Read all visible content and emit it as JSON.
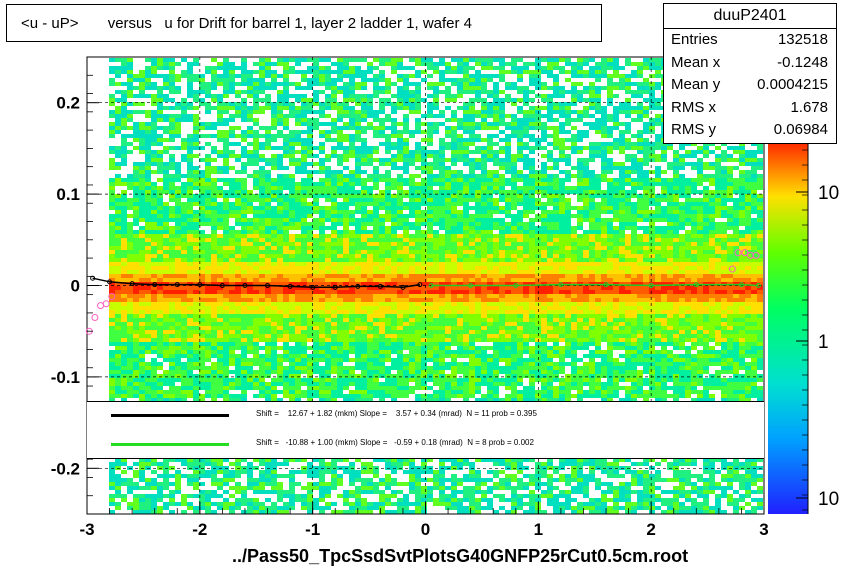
{
  "title": "<u - uP>       versus   u for Drift for barrel 1, layer 2 ladder 1, wafer 4",
  "x_axis_title": "../Pass50_TpcSsdSvtPlotsG40GNFP25rCut0.5cm.root",
  "stats": {
    "name": "duuP2401",
    "rows": [
      {
        "label": "Entries",
        "value": "132518"
      },
      {
        "label": "Mean x",
        "value": "-0.1248"
      },
      {
        "label": "Mean y",
        "value": "0.0004215"
      },
      {
        "label": "RMS x",
        "value": "1.678"
      },
      {
        "label": "RMS y",
        "value": "0.06984"
      }
    ]
  },
  "fit_legend": [
    {
      "color": "#000000",
      "text": "Shift =    12.67 + 1.82 (mkm) Slope =    3.57 + 0.34 (mrad)  N = 11 prob = 0.395"
    },
    {
      "color": "#22dd22",
      "text": "Shift =   -10.88 + 1.00 (mkm) Slope =   -0.59 + 0.18 (mrad)  N = 8 prob = 0.002"
    }
  ],
  "colors": {
    "heat_low": "#00e0c0",
    "heat_mid": "#40ff00",
    "heat_high": "#ffd000",
    "core": "#ff2000",
    "profile_black": "#000000",
    "profile_green": "#22cc22",
    "points": "#ff60c0"
  },
  "chart_data": {
    "type": "heatmap",
    "title": "<u - uP>       versus   u for Drift for barrel 1, layer 2 ladder 1, wafer 4",
    "xlabel": "../Pass50_TpcSsdSvtPlotsG40GNFP25rCut0.5cm.root",
    "ylabel": "",
    "xlim": [
      -3,
      3
    ],
    "ylim": [
      -0.25,
      0.25
    ],
    "x_ticks": [
      "-3",
      "-2",
      "-1",
      "0",
      "1",
      "2",
      "3"
    ],
    "y_ticks": [
      "-0.2",
      "-0.1",
      "0",
      "0.1",
      "0.2"
    ],
    "z_scale": "log",
    "z_ticks": [
      "10",
      "1",
      "10"
    ],
    "grid": true,
    "profile_left": {
      "x": [
        -2.95,
        -2.8,
        -2.6,
        -2.4,
        -2.2,
        -2.0,
        -1.8,
        -1.6,
        -1.4,
        -1.2,
        -1.0,
        -0.8,
        -0.6,
        -0.4,
        -0.2,
        -0.05
      ],
      "y": [
        0.008,
        0.004,
        0.002,
        0.001,
        0.001,
        0.001,
        0.0,
        0.0,
        0.0,
        -0.001,
        -0.002,
        -0.002,
        -0.001,
        -0.001,
        -0.002,
        0.001
      ]
    },
    "profile_right": {
      "x": [
        0.05,
        0.4,
        0.8,
        1.2,
        1.6,
        2.0,
        2.4,
        2.8,
        2.95
      ],
      "y": [
        0.0,
        0.0,
        0.0,
        0.001,
        0.001,
        0.0,
        0.001,
        0.001,
        0.0
      ]
    },
    "outlier_points": {
      "x": [
        -2.98,
        -2.93,
        -2.88,
        -2.83,
        -2.78,
        2.72,
        2.77,
        2.83,
        2.88,
        2.93
      ],
      "y": [
        -0.05,
        -0.035,
        -0.022,
        -0.02,
        -0.012,
        0.018,
        0.036,
        0.036,
        0.033,
        0.033
      ]
    }
  }
}
